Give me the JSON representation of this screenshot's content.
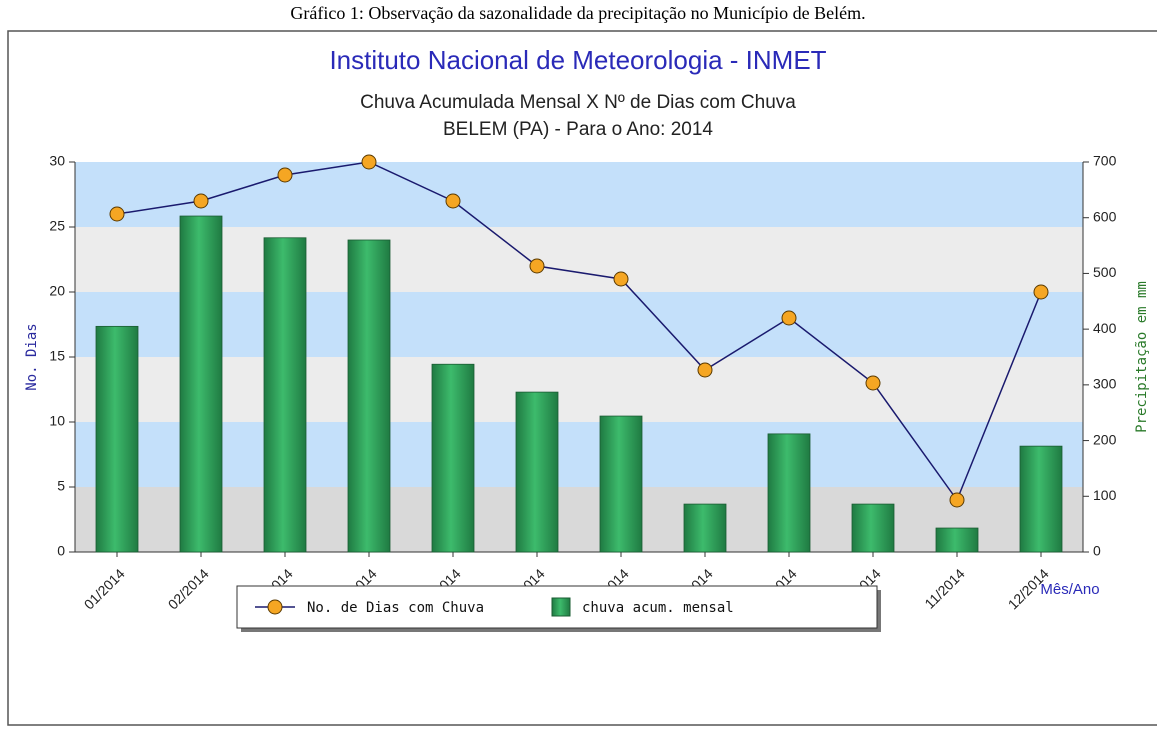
{
  "caption": "Gráfico 1: Observação da sazonalidade da precipitação no Município de Belém.",
  "chart_data": {
    "type": "combo",
    "title": "Instituto Nacional de Meteorologia - INMET",
    "subtitle": [
      "Chuva Acumulada Mensal X Nº de Dias com Chuva",
      "BELEM (PA) - Para o Ano: 2014"
    ],
    "ylabel": "No. Dias",
    "y2label": "Precipitação em mm",
    "xlabel": "Mês/Ano",
    "categories": [
      "01/2014",
      "02/2014",
      "03/2014",
      "04/2014",
      "05/2014",
      "06/2014",
      "07/2014",
      "08/2014",
      "09/2014",
      "10/2014",
      "11/2014",
      "12/2014"
    ],
    "series": [
      {
        "name": "No. de Dias com Chuva",
        "type": "line",
        "color": "#1a1a6e",
        "marker_color": "#f5a623",
        "axis": "y",
        "values": [
          26,
          27,
          29,
          30,
          27,
          22,
          21,
          14,
          18,
          13,
          4,
          20
        ]
      },
      {
        "name": "chuva acum. mensal",
        "type": "bar",
        "color": "#2e9e5a",
        "axis": "y2",
        "values": [
          405,
          603,
          564,
          560,
          337,
          287,
          244,
          86,
          212,
          86,
          43,
          190
        ]
      }
    ],
    "ylim": [
      0,
      30
    ],
    "yticks": [
      0,
      5,
      10,
      15,
      20,
      25,
      30
    ],
    "y2lim": [
      0,
      700
    ],
    "y2ticks": [
      0,
      100,
      200,
      300,
      400,
      500,
      600,
      700
    ],
    "bands": [
      "#d9d9d9",
      "#c4e0fa",
      "#ececec"
    ]
  }
}
